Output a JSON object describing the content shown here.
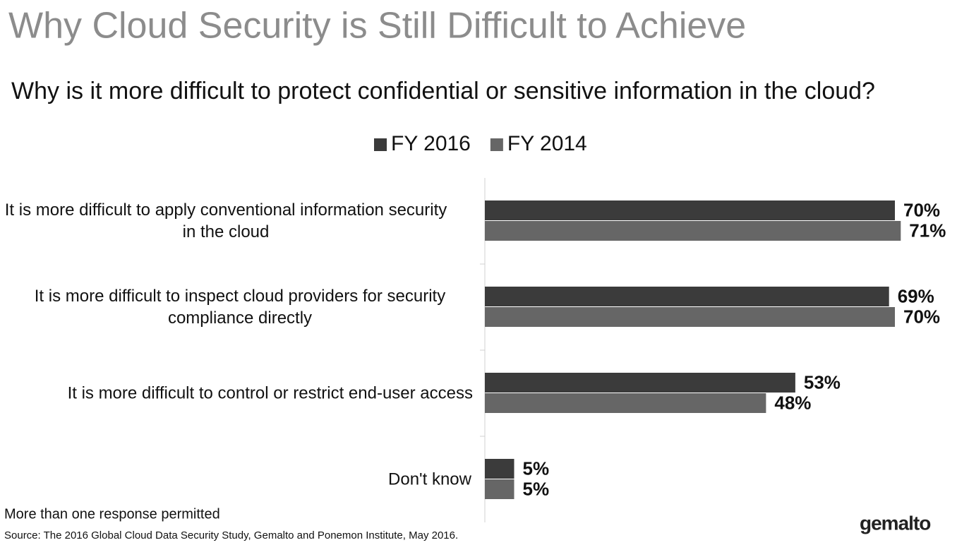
{
  "chart_data": {
    "type": "hbar",
    "title": "Why Cloud Security is Still Difficult to Achieve",
    "subtitle": "Why is it more difficult to protect confidential or sensitive information in the cloud?",
    "categories": [
      "It is more difficult to apply conventional information security in the cloud",
      "It is more difficult to inspect cloud providers for security compliance directly",
      "It is more difficult to control or restrict end-user access",
      "Don't know"
    ],
    "series": [
      {
        "name": "FY 2016",
        "color": "#3b3b3b",
        "values": [
          70,
          69,
          53,
          5
        ],
        "value_labels": [
          "70%",
          "69%",
          "53%",
          "5%"
        ]
      },
      {
        "name": "FY 2014",
        "color": "#666666",
        "values": [
          71,
          70,
          48,
          5
        ],
        "value_labels": [
          "71%",
          "70%",
          "48%",
          "5%"
        ]
      }
    ],
    "legend": "top",
    "note": "More than one response permitted",
    "source": "Source: The 2016 Global Cloud Data Security Study, Gemalto and Ponemon Institute, May 2016.",
    "logo": "gemalto"
  }
}
